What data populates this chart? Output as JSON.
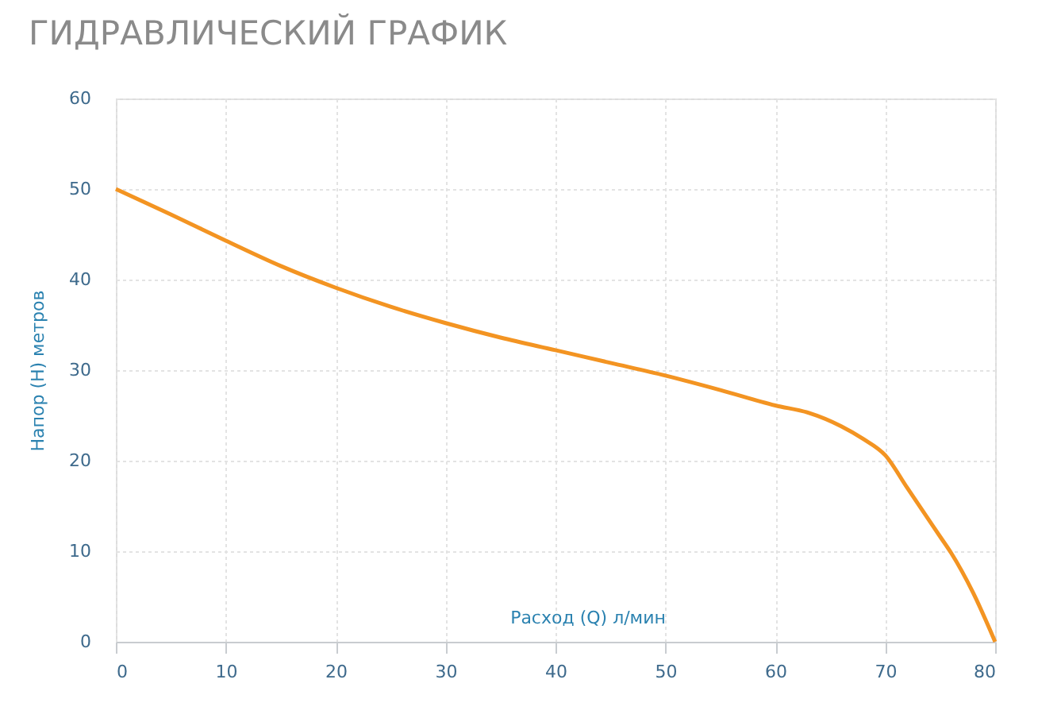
{
  "chart_data": {
    "type": "line",
    "title": "ГИДРАВЛИЧЕСКИЙ ГРАФИК",
    "xlabel": "Расход (Q) л/мин",
    "ylabel": "Напор (H) метров",
    "x": [
      0,
      5,
      10,
      15,
      20,
      25,
      30,
      35,
      40,
      45,
      50,
      55,
      60,
      63,
      66,
      68,
      70,
      72,
      75,
      76,
      78,
      80
    ],
    "series": [
      {
        "color": "#f39422",
        "values": [
          50,
          47.2,
          44.3,
          41.5,
          39.1,
          37,
          35.2,
          33.6,
          32.2,
          30.8,
          29.4,
          27.8,
          26.1,
          25.3,
          23.8,
          22.4,
          20.6,
          17,
          11.6,
          9.8,
          5.4,
          0
        ]
      }
    ],
    "xlim": [
      0,
      80
    ],
    "ylim": [
      0,
      60
    ],
    "xticks": [
      0,
      10,
      20,
      30,
      40,
      50,
      60,
      70,
      80
    ],
    "yticks": [
      0,
      10,
      20,
      30,
      40,
      50,
      60
    ],
    "grid": true,
    "marker": "none",
    "line_style": "solid"
  }
}
